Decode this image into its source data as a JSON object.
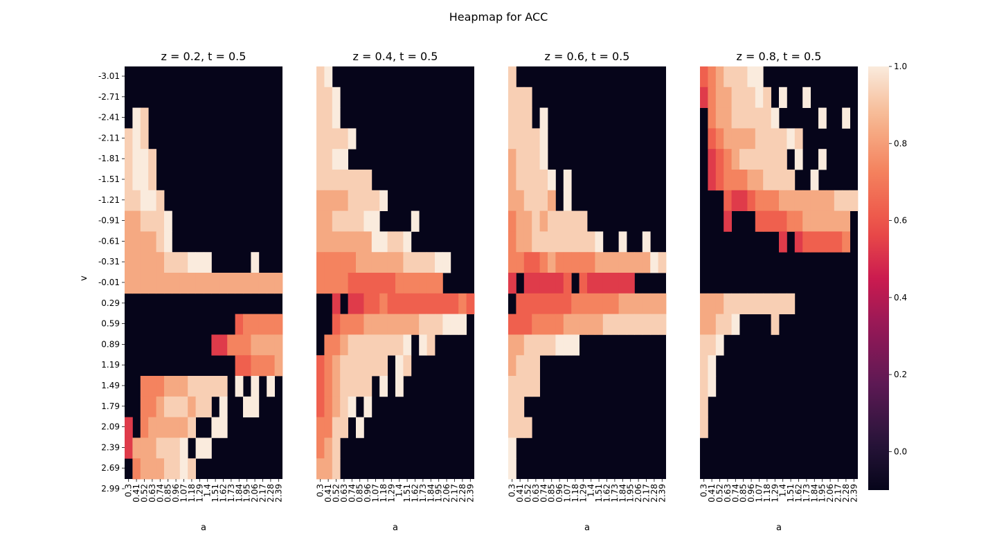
{
  "figure": {
    "suptitle": "Heapmap for ACC"
  },
  "chart_data": {
    "type": "heatmap",
    "title": "Heapmap for ACC",
    "xlabel": "a",
    "ylabel": "v",
    "x_tick_labels": [
      "0.3",
      "0.41",
      "0.52",
      "0.63",
      "0.74",
      "0.85",
      "0.96",
      "1.07",
      "1.18",
      "1.29",
      "1.4",
      "1.51",
      "1.62",
      "1.73",
      "1.84",
      "1.95",
      "2.06",
      "2.17",
      "2.28",
      "2.39"
    ],
    "y_tick_labels": [
      "-3.01",
      "-2.71",
      "-2.41",
      "-2.11",
      "-1.81",
      "-1.51",
      "-1.21",
      "-0.91",
      "-0.61",
      "-0.31",
      "-0.01",
      "0.29",
      "0.59",
      "0.89",
      "1.19",
      "1.49",
      "1.79",
      "2.09",
      "2.39",
      "2.69",
      "2.99"
    ],
    "colorbar": {
      "vmin": -0.1,
      "vmax": 1.0,
      "ticks": [
        "0.0",
        "0.2",
        "0.4",
        "0.6",
        "0.8",
        "1.0"
      ],
      "tick_values": [
        0.0,
        0.2,
        0.4,
        0.6,
        0.8,
        1.0
      ],
      "colormap": "rocket"
    },
    "panels": [
      {
        "title": "z = 0.2, t = 0.5",
        "rows": [
          "----------------------------------------",
          "------------------------------------------------------",
          "-A9-----------------------------------------------------",
          "9A9-----------------------------------------",
          "9AA9----------------------------------------",
          "9AA9----------------------------------------",
          "99AA9--------------------------------------",
          "88999A------------------------------------",
          "88889A-----------------------------------------",
          "88888999AAA-----A-",
          "8888888888888888888888",
          "------------------------------------",
          "--------------6777777788",
          "-----------557778888999",
          "--------------6677788899999",
          "--77788899999-A-A-A----",
          "--778999899-A--AA--",
          "5-7888889--AA------",
          "5888999A-AA--------------",
          "-788899A9-------------"
        ]
      },
      {
        "title": "z = 0.4, t = 0.5",
        "rows": [
          "9A-----------------------",
          "99A-----------------------",
          "99A------------------------",
          "9999A----------------------",
          "99AA-----------------------",
          "9999999-----------------",
          "88889999A-----------------",
          "889999AA----A---------",
          "8888888AA99A----------",
          "777778888889999AA",
          "7777666666777777",
          "--5-5566766666666676",
          "--67778888888999AAA",
          "-7789999999A-A9--------",
          "678999999-A9------------",
          "6789999-A-A-------------",
          "6789A-A-----------------",
          "7799-A------------------",
          "789--------------------",
          "889---------------------"
        ]
      },
      {
        "title": "z = 0.6, t = 0.5",
        "rows": [
          "9---------------------",
          "999--------------------",
          "999-A------------------",
          "9999A------------------",
          "8999A------------------",
          "89999A-A---------------",
          "889998-A---------------",
          "7889899999-------------",
          "78899999999A--A--A-----",
          "776678777778888888A9A",
          "5-555556-6555555--------",
          "-6666666777777888888888",
          "666777788888999999999A-",
          "889999AAA-------------",
          "8999------------------",
          "9999------------------",
          "99---------------------",
          "999--------------------",
          "A----------------------",
          "A----------------------"
        ]
      },
      {
        "title": "z = 0.8, t = 0.5",
        "rows": [
          "678999AA----------------",
          "5788999A9-A--A---------",
          "-78899999A-----A--A-----",
          "-6788889999A9---------",
          "-5678999999-A--A--------",
          "-56777889999--A---------",
          "---65567778888888999",
          "---5---666677888888",
          "----------5-5666667",
          "------------------------",
          "------------------------",
          "888999999999----------",
          "8899A----9-------------",
          "99A--------------------",
          "9A---------------------",
          "9A---------------------",
          "9-----------------------",
          "9-----------------------",
          "------------------------",
          "------------------------"
        ]
      }
    ]
  }
}
